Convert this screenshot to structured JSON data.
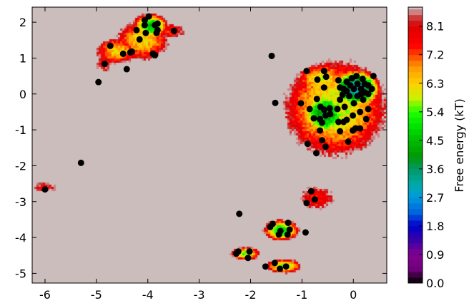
{
  "chart_data": {
    "type": "contour+scatter",
    "xlim": [
      -6.25,
      0.65
    ],
    "ylim": [
      -5.27,
      2.42
    ],
    "x_ticks": [
      "-6",
      "-5",
      "-4",
      "-3",
      "-2",
      "-1",
      "0"
    ],
    "x_tick_values": [
      -6,
      -5,
      -4,
      -3,
      -2,
      -1,
      0
    ],
    "y_ticks": [
      "2",
      "1",
      "0",
      "-1",
      "-2",
      "-3",
      "-4",
      "-5"
    ],
    "y_tick_values": [
      2,
      1,
      0,
      -1,
      -2,
      -3,
      -4,
      -5
    ],
    "grid": false,
    "background_color": "#cbbdbc",
    "point_color": "#000000",
    "colorbar": {
      "label": "Free energy (kT)",
      "range": [
        0.0,
        8.7
      ],
      "ticks": [
        "0.0",
        "0.9",
        "1.8",
        "2.7",
        "3.6",
        "4.5",
        "5.4",
        "6.3",
        "7.2",
        "8.1"
      ],
      "tick_values": [
        0.0,
        0.9,
        1.8,
        2.7,
        3.6,
        4.5,
        5.4,
        6.3,
        7.2,
        8.1
      ],
      "colormap": [
        [
          0.0,
          "#000000"
        ],
        [
          0.45,
          "#70007a"
        ],
        [
          0.9,
          "#820090"
        ],
        [
          1.35,
          "#3a00a8"
        ],
        [
          1.8,
          "#0000cc"
        ],
        [
          2.25,
          "#0066dd"
        ],
        [
          2.7,
          "#0099dd"
        ],
        [
          3.1,
          "#00aaaa"
        ],
        [
          3.6,
          "#009966"
        ],
        [
          4.0,
          "#009900"
        ],
        [
          4.5,
          "#00bb00"
        ],
        [
          5.0,
          "#00e600"
        ],
        [
          5.4,
          "#22ff00"
        ],
        [
          5.85,
          "#ccf000"
        ],
        [
          6.3,
          "#ffd000"
        ],
        [
          6.8,
          "#ff9900"
        ],
        [
          7.2,
          "#ff4400"
        ],
        [
          7.5,
          "#ff0000"
        ],
        [
          8.1,
          "#dd0000"
        ],
        [
          8.35,
          "#cc3333"
        ],
        [
          8.55,
          "#d08080"
        ],
        [
          8.7,
          "#cbbdbc"
        ]
      ]
    },
    "points": [
      [
        -4.73,
        1.34
      ],
      [
        -4.84,
        0.84
      ],
      [
        -4.41,
        0.69
      ],
      [
        -4.48,
        1.12
      ],
      [
        -4.34,
        1.16
      ],
      [
        -4.31,
        1.18
      ],
      [
        -3.9,
        1.12
      ],
      [
        -3.86,
        1.08
      ],
      [
        -4.16,
        1.52
      ],
      [
        -4.22,
        1.78
      ],
      [
        -4.04,
        1.7
      ],
      [
        -4.06,
        2.06
      ],
      [
        -4.06,
        1.92
      ],
      [
        -3.98,
        2.16
      ],
      [
        -3.86,
        1.92
      ],
      [
        -3.81,
        1.96
      ],
      [
        -3.81,
        1.78
      ],
      [
        -3.83,
        1.7
      ],
      [
        -3.49,
        1.76
      ],
      [
        -4.96,
        0.33
      ],
      [
        -5.3,
        -1.92
      ],
      [
        -6.0,
        -2.66
      ],
      [
        -1.59,
        1.06
      ],
      [
        -1.52,
        -0.25
      ],
      [
        -0.91,
        0.64
      ],
      [
        -0.57,
        0.64
      ],
      [
        -0.53,
        0.48
      ],
      [
        -0.7,
        0.4
      ],
      [
        -0.57,
        0.18
      ],
      [
        -1.02,
        -0.26
      ],
      [
        -0.71,
        -0.14
      ],
      [
        -0.85,
        -0.42
      ],
      [
        -0.64,
        -0.36
      ],
      [
        -0.57,
        -0.44
      ],
      [
        -0.46,
        -0.4
      ],
      [
        -0.31,
        -0.42
      ],
      [
        -0.77,
        -0.68
      ],
      [
        -0.65,
        -0.7
      ],
      [
        -0.61,
        -0.8
      ],
      [
        -0.54,
        -0.6
      ],
      [
        -0.45,
        -0.56
      ],
      [
        -0.65,
        -1.02
      ],
      [
        -0.26,
        -1.04
      ],
      [
        -0.29,
        0.38
      ],
      [
        -0.26,
        0.18
      ],
      [
        -0.21,
        -0.02
      ],
      [
        -0.17,
        -0.36
      ],
      [
        -0.29,
        -0.78
      ],
      [
        -0.19,
        -0.78
      ],
      [
        -0.13,
        -0.72
      ],
      [
        -0.01,
        -0.6
      ],
      [
        0.06,
        0.5
      ],
      [
        0.18,
        0.42
      ],
      [
        0.22,
        0.04
      ],
      [
        0.29,
        -0.42
      ],
      [
        0.25,
        -0.7
      ],
      [
        0.13,
        -0.5
      ],
      [
        0.04,
        -0.96
      ],
      [
        0.13,
        -0.96
      ],
      [
        -0.01,
        -1.02
      ],
      [
        -0.1,
        -1.33
      ],
      [
        -0.61,
        -1.29
      ],
      [
        -0.54,
        -1.47
      ],
      [
        -0.89,
        -1.39
      ],
      [
        -0.72,
        -1.65
      ],
      [
        0.39,
        0.5
      ],
      [
        -0.13,
        0.34
      ],
      [
        -0.06,
        0.24
      ],
      [
        0.01,
        0.14
      ],
      [
        0.08,
        0.28
      ],
      [
        0.15,
        0.14
      ],
      [
        0.22,
        0.28
      ],
      [
        0.29,
        0.24
      ],
      [
        -0.19,
        0.14
      ],
      [
        -0.08,
        -0.06
      ],
      [
        0.08,
        -0.06
      ],
      [
        0.19,
        -0.16
      ],
      [
        0.01,
        -0.26
      ],
      [
        0.29,
        0.0
      ],
      [
        -0.13,
        0.08
      ],
      [
        -0.03,
        0.44
      ],
      [
        0.15,
        0.0
      ],
      [
        0.36,
        0.14
      ],
      [
        -0.26,
        -0.16
      ],
      [
        -0.82,
        -2.71
      ],
      [
        -0.75,
        -2.94
      ],
      [
        -0.91,
        -3.04
      ],
      [
        -2.22,
        -3.34
      ],
      [
        -0.93,
        -3.86
      ],
      [
        -1.57,
        -3.62
      ],
      [
        -1.62,
        -3.71
      ],
      [
        -1.27,
        -3.59
      ],
      [
        -1.42,
        -3.82
      ],
      [
        -1.45,
        -3.92
      ],
      [
        -1.24,
        -3.78
      ],
      [
        -1.28,
        -3.92
      ],
      [
        -2.24,
        -4.39
      ],
      [
        -2.28,
        -4.45
      ],
      [
        -2.02,
        -4.39
      ],
      [
        -2.05,
        -4.57
      ],
      [
        -1.71,
        -4.81
      ],
      [
        -1.53,
        -4.71
      ],
      [
        -1.43,
        -4.87
      ],
      [
        -1.31,
        -4.81
      ]
    ]
  }
}
